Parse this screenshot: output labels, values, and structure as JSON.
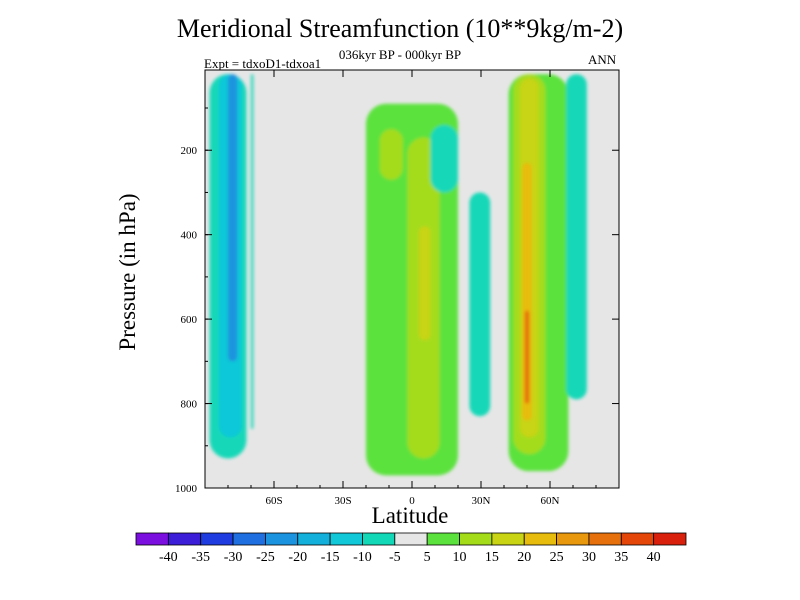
{
  "chart_data": {
    "type": "contour",
    "title": "Meridional Streamfunction (10**9kg/m-2)",
    "subtitle": "036kyr BP - 000kyr BP",
    "experiment": "Expt = tdxoD1-tdxoa1",
    "season": "ANN",
    "xlabel": "Latitude",
    "ylabel": "Pressure (in hPa)",
    "xlim": [
      -90,
      90
    ],
    "ylim": [
      1000,
      10
    ],
    "x_ticks": [
      {
        "value": -60,
        "label": "60S"
      },
      {
        "value": -30,
        "label": "30S"
      },
      {
        "value": 0,
        "label": "0"
      },
      {
        "value": 30,
        "label": "30N"
      },
      {
        "value": 60,
        "label": "60N"
      }
    ],
    "y_ticks": [
      {
        "value": 200,
        "label": "200"
      },
      {
        "value": 400,
        "label": "400"
      },
      {
        "value": 600,
        "label": "600"
      },
      {
        "value": 800,
        "label": "800"
      },
      {
        "value": 1000,
        "label": "1000"
      }
    ],
    "colorbar": {
      "labels": [
        "-40",
        "-35",
        "-30",
        "-25",
        "-20",
        "-15",
        "-10",
        "-5",
        "5",
        "10",
        "15",
        "20",
        "25",
        "30",
        "35",
        "40"
      ],
      "colors": [
        "#7b0fe0",
        "#3c1ed8",
        "#1f3ce0",
        "#1f6fe0",
        "#1c93de",
        "#12b0da",
        "#10c8d8",
        "#12d8b8",
        "#e6e6e6",
        "#5ce23c",
        "#a4dc1a",
        "#c8d414",
        "#e8bc0c",
        "#e8980c",
        "#e6700c",
        "#e4460a",
        "#d8200c"
      ]
    },
    "background_color": "#e6e6e6",
    "regions": [
      {
        "name": "sh-cell-outer",
        "level": "-5",
        "color": "#12d8b8",
        "lat": [
          -88,
          -72
        ],
        "p": [
          20,
          930
        ]
      },
      {
        "name": "sh-cell-mid",
        "level": "-10",
        "color": "#10c8d8",
        "lat": [
          -84,
          -74
        ],
        "p": [
          20,
          880
        ]
      },
      {
        "name": "sh-cell-core",
        "level": "-20",
        "color": "#1c93de",
        "lat": [
          -80,
          -76
        ],
        "p": [
          20,
          700
        ]
      },
      {
        "name": "sh-thin-band",
        "level": "-5",
        "color": "#12d8b8",
        "lat": [
          -70,
          -69
        ],
        "p": [
          20,
          860
        ]
      },
      {
        "name": "tropical-positive",
        "level": "5",
        "color": "#5ce23c",
        "lat": [
          -20,
          20
        ],
        "p": [
          90,
          970
        ]
      },
      {
        "name": "tropical-core",
        "level": "10",
        "color": "#a4dc1a",
        "lat": [
          -2,
          12
        ],
        "p": [
          170,
          930
        ]
      },
      {
        "name": "tropical-upper-core",
        "level": "10",
        "color": "#a4dc1a",
        "lat": [
          -14,
          -4
        ],
        "p": [
          150,
          270
        ]
      },
      {
        "name": "tropical-center",
        "level": "15",
        "color": "#c8d414",
        "lat": [
          3,
          8
        ],
        "p": [
          380,
          650
        ]
      },
      {
        "name": "nh-sub-upper",
        "level": "-5",
        "color": "#12d8b8",
        "lat": [
          8,
          20
        ],
        "p": [
          140,
          300
        ]
      },
      {
        "name": "nh-sub-band",
        "level": "-5",
        "color": "#12d8b8",
        "lat": [
          25,
          34
        ],
        "p": [
          300,
          830
        ]
      },
      {
        "name": "nh-ferrel-outer",
        "level": "5",
        "color": "#5ce23c",
        "lat": [
          42,
          68
        ],
        "p": [
          20,
          960
        ]
      },
      {
        "name": "nh-ferrel-10",
        "level": "10",
        "color": "#a4dc1a",
        "lat": [
          44,
          58
        ],
        "p": [
          20,
          920
        ]
      },
      {
        "name": "nh-ferrel-15",
        "level": "15",
        "color": "#c8d414",
        "lat": [
          47,
          55
        ],
        "p": [
          30,
          880
        ]
      },
      {
        "name": "nh-ferrel-25",
        "level": "25",
        "color": "#e8bc0c",
        "lat": [
          48,
          52
        ],
        "p": [
          230,
          840
        ]
      },
      {
        "name": "nh-ferrel-35",
        "level": "35",
        "color": "#e6700c",
        "lat": [
          49,
          51
        ],
        "p": [
          580,
          800
        ]
      },
      {
        "name": "nh-polar-neg",
        "level": "-5",
        "color": "#12d8b8",
        "lat": [
          67,
          76
        ],
        "p": [
          20,
          790
        ]
      }
    ]
  }
}
